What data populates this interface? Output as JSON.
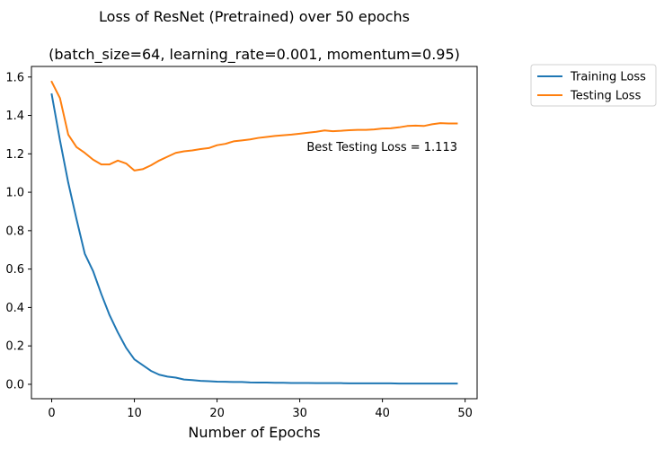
{
  "chart_data": {
    "type": "line",
    "title": "Loss of ResNet (Pretrained) over 50 epochs",
    "subtitle": "(batch_size=64, learning_rate=0.001, momentum=0.95)",
    "xlabel": "Number of Epochs",
    "ylabel": "",
    "xlim": [
      -2.45,
      51.45
    ],
    "ylim": [
      -0.075,
      1.655
    ],
    "xticks": [
      0,
      10,
      20,
      30,
      40,
      50
    ],
    "yticks": [
      0.0,
      0.2,
      0.4,
      0.6,
      0.8,
      1.0,
      1.2,
      1.4,
      1.6
    ],
    "xtick_labels": [
      "0",
      "10",
      "20",
      "30",
      "40",
      "50"
    ],
    "ytick_labels": [
      "0.0",
      "0.2",
      "0.4",
      "0.6",
      "0.8",
      "1.0",
      "1.2",
      "1.4",
      "1.6"
    ],
    "grid": false,
    "legend_position": "outside-top-right",
    "annotation": "Best Testing Loss = 1.113",
    "x": [
      0,
      1,
      2,
      3,
      4,
      5,
      6,
      7,
      8,
      9,
      10,
      11,
      12,
      13,
      14,
      15,
      16,
      17,
      18,
      19,
      20,
      21,
      22,
      23,
      24,
      25,
      26,
      27,
      28,
      29,
      30,
      31,
      32,
      33,
      34,
      35,
      36,
      37,
      38,
      39,
      40,
      41,
      42,
      43,
      44,
      45,
      46,
      47,
      48,
      49
    ],
    "series": [
      {
        "name": "Training Loss",
        "color": "#1f77b4",
        "values": [
          1.51,
          1.27,
          1.05,
          0.86,
          0.68,
          0.59,
          0.47,
          0.36,
          0.27,
          0.19,
          0.13,
          0.1,
          0.07,
          0.05,
          0.04,
          0.035,
          0.025,
          0.022,
          0.018,
          0.016,
          0.014,
          0.013,
          0.012,
          0.012,
          0.01,
          0.009,
          0.009,
          0.008,
          0.008,
          0.007,
          0.007,
          0.007,
          0.006,
          0.006,
          0.006,
          0.006,
          0.005,
          0.005,
          0.005,
          0.005,
          0.005,
          0.005,
          0.004,
          0.004,
          0.004,
          0.004,
          0.004,
          0.004,
          0.004,
          0.004
        ]
      },
      {
        "name": "Testing Loss",
        "color": "#ff7f0e",
        "values": [
          1.575,
          1.49,
          1.3,
          1.235,
          1.205,
          1.17,
          1.145,
          1.145,
          1.165,
          1.15,
          1.113,
          1.12,
          1.14,
          1.165,
          1.185,
          1.205,
          1.213,
          1.218,
          1.225,
          1.23,
          1.245,
          1.252,
          1.265,
          1.27,
          1.275,
          1.283,
          1.288,
          1.293,
          1.297,
          1.3,
          1.305,
          1.31,
          1.315,
          1.322,
          1.318,
          1.32,
          1.323,
          1.325,
          1.325,
          1.327,
          1.332,
          1.333,
          1.338,
          1.345,
          1.347,
          1.345,
          1.354,
          1.36,
          1.358,
          1.358
        ]
      }
    ]
  }
}
